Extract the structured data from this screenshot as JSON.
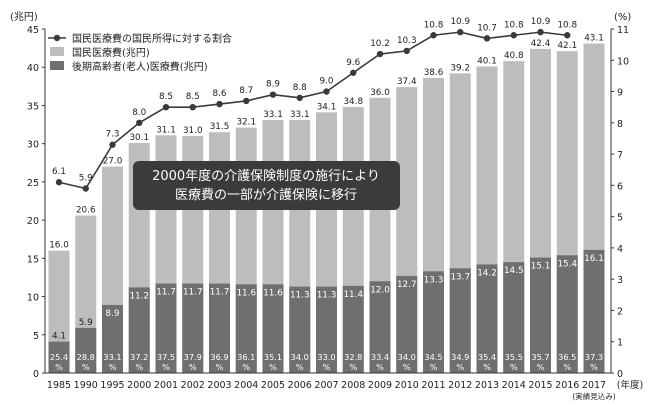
{
  "chart_data": {
    "type": "bar",
    "left_axis_label": "(兆円)",
    "right_axis_label": "(%)",
    "x_unit": "(年度)",
    "x_note": "(実績見込み)",
    "y_left": {
      "min": 0,
      "max": 45,
      "ticks": [
        0,
        5,
        10,
        15,
        20,
        25,
        30,
        35,
        40,
        45
      ]
    },
    "y_right": {
      "min": 0,
      "max": 11,
      "ticks": [
        0,
        1,
        2,
        3,
        4,
        5,
        6,
        7,
        8,
        9,
        10,
        11
      ]
    },
    "categories": [
      "1985",
      "1990",
      "1995",
      "2000",
      "2001",
      "2002",
      "2003",
      "2004",
      "2005",
      "2006",
      "2007",
      "2008",
      "2009",
      "2010",
      "2011",
      "2012",
      "2013",
      "2014",
      "2015",
      "2016",
      "2017"
    ],
    "series": [
      {
        "name": "国民医療費の国民所得に対する割合",
        "kind": "line",
        "axis": "right",
        "values": [
          6.1,
          5.9,
          7.3,
          8.0,
          8.5,
          8.5,
          8.6,
          8.7,
          8.9,
          8.8,
          9.0,
          9.6,
          10.2,
          10.3,
          10.8,
          10.9,
          10.7,
          10.8,
          10.9,
          10.8,
          null
        ],
        "labels": [
          "6.1",
          "5.9",
          "7.3",
          "8.0",
          "8.5",
          "8.5",
          "8.6",
          "8.7",
          "8.9",
          "8.8",
          "9.0",
          "9.6",
          "10.2",
          "10.3",
          "10.8",
          "10.9",
          "10.7",
          "10.8",
          "10.9",
          "10.8",
          ""
        ]
      },
      {
        "name": "国民医療費(兆円)",
        "kind": "bar",
        "axis": "left",
        "values": [
          16.0,
          20.6,
          27.0,
          30.1,
          31.1,
          31.0,
          31.5,
          32.1,
          33.1,
          33.1,
          34.1,
          34.8,
          36.0,
          37.4,
          38.6,
          39.2,
          40.1,
          40.8,
          42.4,
          42.1,
          43.1
        ],
        "labels": [
          "16.0",
          "20.6",
          "27.0",
          "30.1",
          "31.1",
          "31.0",
          "31.5",
          "32.1",
          "33.1",
          "33.1",
          "34.1",
          "34.8",
          "36.0",
          "37.4",
          "38.6",
          "39.2",
          "40.1",
          "40.8",
          "42.4",
          "42.1",
          "43.1"
        ]
      },
      {
        "name": "後期高齢者(老人)医療費(兆円)",
        "kind": "bar",
        "axis": "left",
        "values": [
          4.1,
          5.9,
          8.9,
          11.2,
          11.7,
          11.7,
          11.7,
          11.6,
          11.6,
          11.3,
          11.3,
          11.4,
          12.0,
          12.7,
          13.3,
          13.7,
          14.2,
          14.5,
          15.1,
          15.4,
          16.1
        ],
        "labels": [
          "4.1",
          "5.9",
          "8.9",
          "11.2",
          "11.7",
          "11.7",
          "11.7",
          "11.6",
          "11.6",
          "11.3",
          "11.3",
          "11.4",
          "12.0",
          "12.7",
          "13.3",
          "13.7",
          "14.2",
          "14.5",
          "15.1",
          "15.4",
          "16.1"
        ]
      }
    ],
    "share_percent_labels": [
      "25.4",
      "28.8",
      "33.1",
      "37.2",
      "37.5",
      "37.9",
      "36.9",
      "36.1",
      "35.1",
      "34.0",
      "33.0",
      "32.8",
      "33.4",
      "34.0",
      "34.5",
      "34.9",
      "35.4",
      "35.5",
      "35.7",
      "36.5",
      "37.3"
    ],
    "share_percent_unit": "%",
    "annotation": [
      "2000年度の介護保険制度の施行により",
      "医療費の一部が介護保険に移行"
    ],
    "legend_placement": "top-left",
    "grid": false,
    "colors": {
      "total_bar": "#bdbdbd",
      "elderly_bar": "#6f6f6f",
      "line": "#3a3a3a",
      "annotation_bg": "#3b3b3b"
    }
  }
}
